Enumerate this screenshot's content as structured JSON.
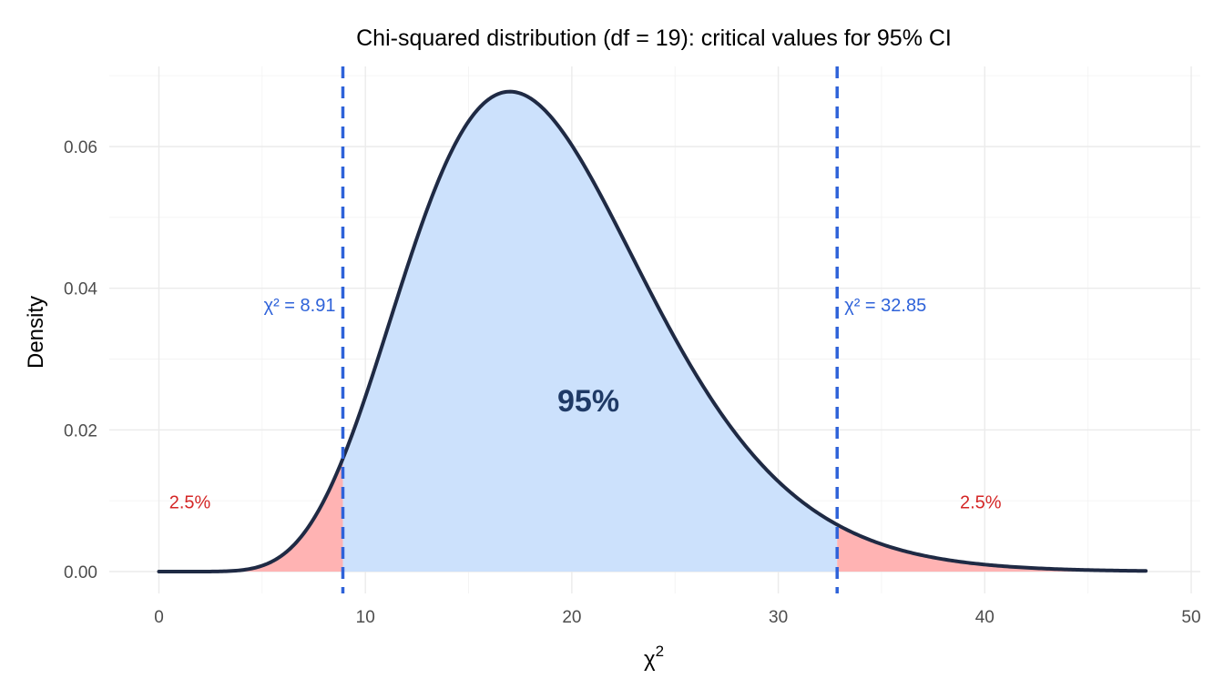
{
  "chart_data": {
    "type": "area",
    "title": "Chi-squared distribution (df = 19): critical values for 95% CI",
    "xlabel": "χ",
    "xlabel_superscript": "2",
    "ylabel": "Density",
    "df": 19,
    "xlim": [
      0,
      50
    ],
    "ylim": [
      0,
      0.07
    ],
    "x_ticks": [
      0,
      10,
      20,
      30,
      40,
      50
    ],
    "x_tick_labels": [
      "0",
      "10",
      "20",
      "30",
      "40",
      "50"
    ],
    "y_ticks": [
      0,
      0.02,
      0.04,
      0.06
    ],
    "y_tick_labels": [
      "0.00",
      "0.02",
      "0.04",
      "0.06"
    ],
    "grid": true,
    "curve_x_range": [
      0,
      47.8
    ],
    "critical_values": [
      {
        "x": 8.91,
        "label": "χ² = 8.91",
        "label_side": "left"
      },
      {
        "x": 32.85,
        "label": "χ² = 32.85",
        "label_side": "right"
      }
    ],
    "regions": [
      {
        "name": "lower tail",
        "from": 0,
        "to": 8.91,
        "label": "2.5%",
        "label_x": 1.5,
        "label_y": 0.0098
      },
      {
        "name": "center",
        "from": 8.91,
        "to": 32.85,
        "label": "95%",
        "label_x": 20.8,
        "label_y": 0.024
      },
      {
        "name": "upper tail",
        "from": 32.85,
        "to": 47.8,
        "label": "2.5%",
        "label_x": 39.8,
        "label_y": 0.0098
      }
    ],
    "colors": {
      "curve": "#1f2a44",
      "tail_fill": "#ffb3b3",
      "center_fill": "#cce1fc",
      "critical_line": "#2e62d9",
      "critical_label": "#2e62d9",
      "tail_label": "#d42626",
      "center_label": "#1f3a66"
    }
  }
}
